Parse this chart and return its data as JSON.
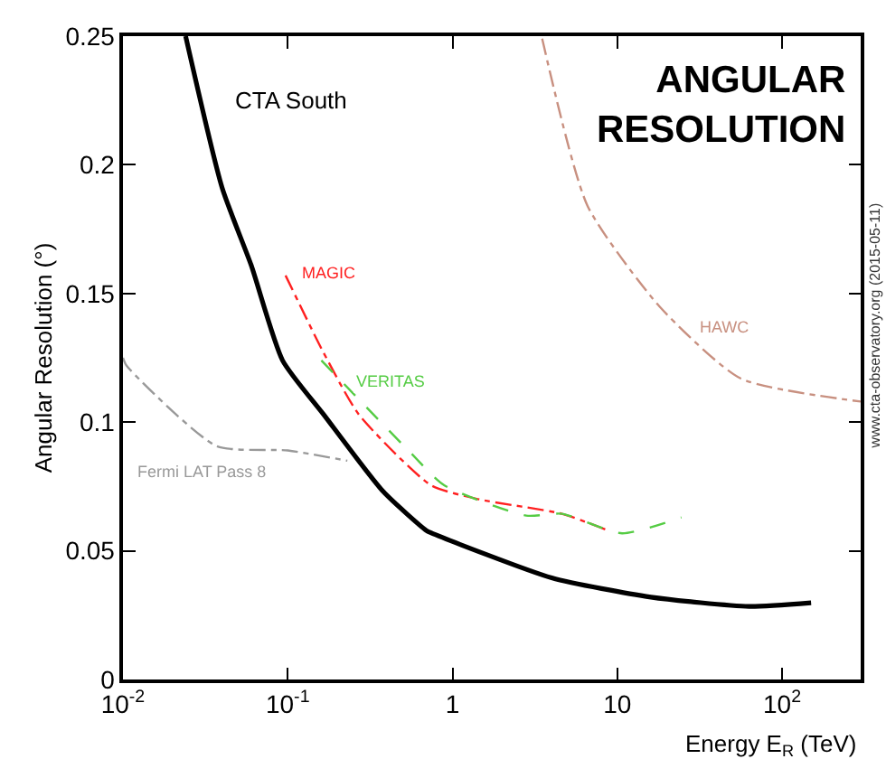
{
  "chart_data": {
    "type": "line",
    "title": "ANGULAR\nRESOLUTION",
    "xlabel": "Energy E$_{R}$ (TeV)",
    "ylabel": "Angular Resolution (°)",
    "log": "x",
    "xlim": [
      0.01,
      300
    ],
    "xticks": [
      {
        "value": 0.01,
        "label": "10$^{-2}$"
      },
      {
        "value": 0.1,
        "label": "10$^{-1}$"
      },
      1,
      10,
      {
        "value": 100,
        "label": "10$^{2}$"
      }
    ],
    "ylim": [
      0,
      0.25
    ],
    "yticks": [
      0,
      0.05,
      0.1,
      0.15,
      0.2,
      0.25
    ],
    "legend": false,
    "marker": "none",
    "series": [
      {
        "name": "CTA South",
        "color": "#000000",
        "line_style": "solid",
        "x": [
          0.024,
          0.04,
          0.06,
          0.093,
          0.165,
          0.38,
          0.69,
          0.74,
          4.0,
          16,
          63,
          150
        ],
        "values": [
          0.25,
          0.191,
          0.161,
          0.124,
          0.103,
          0.073,
          0.058,
          0.057,
          0.0395,
          0.032,
          0.0284,
          0.0298
        ]
      },
      {
        "name": "MAGIC",
        "color": "#ff2020",
        "line_style": "dashdot",
        "x": [
          0.097,
          0.165,
          0.27,
          0.74,
          1.45,
          4.6,
          9.1
        ],
        "values": [
          0.157,
          0.127,
          0.103,
          0.0755,
          0.07,
          0.0644,
          0.0575
        ]
      },
      {
        "name": "VERITAS",
        "color": "#55cc44",
        "line_style": "dashed",
        "x": [
          0.16,
          0.54,
          0.89,
          2.8,
          4.6,
          10.7,
          24.5
        ],
        "values": [
          0.124,
          0.089,
          0.0755,
          0.0637,
          0.0644,
          0.0568,
          0.063
        ]
      },
      {
        "name": "Fermi LAT Pass 8",
        "color": "#999999",
        "line_style": "dashdot",
        "x": [
          0.01,
          0.0105,
          0.037,
          0.1,
          0.23
        ],
        "values": [
          0.125,
          0.122,
          0.0907,
          0.089,
          0.085
        ]
      },
      {
        "name": "HAWC",
        "color": "#c89080",
        "line_style": "dashdot",
        "x": [
          3.5,
          6.6,
          18,
          56,
          300
        ],
        "values": [
          0.249,
          0.184,
          0.145,
          0.117,
          0.108
        ]
      }
    ],
    "annotations": [
      "www.cta-observatory.org (2015-05-11)"
    ]
  }
}
